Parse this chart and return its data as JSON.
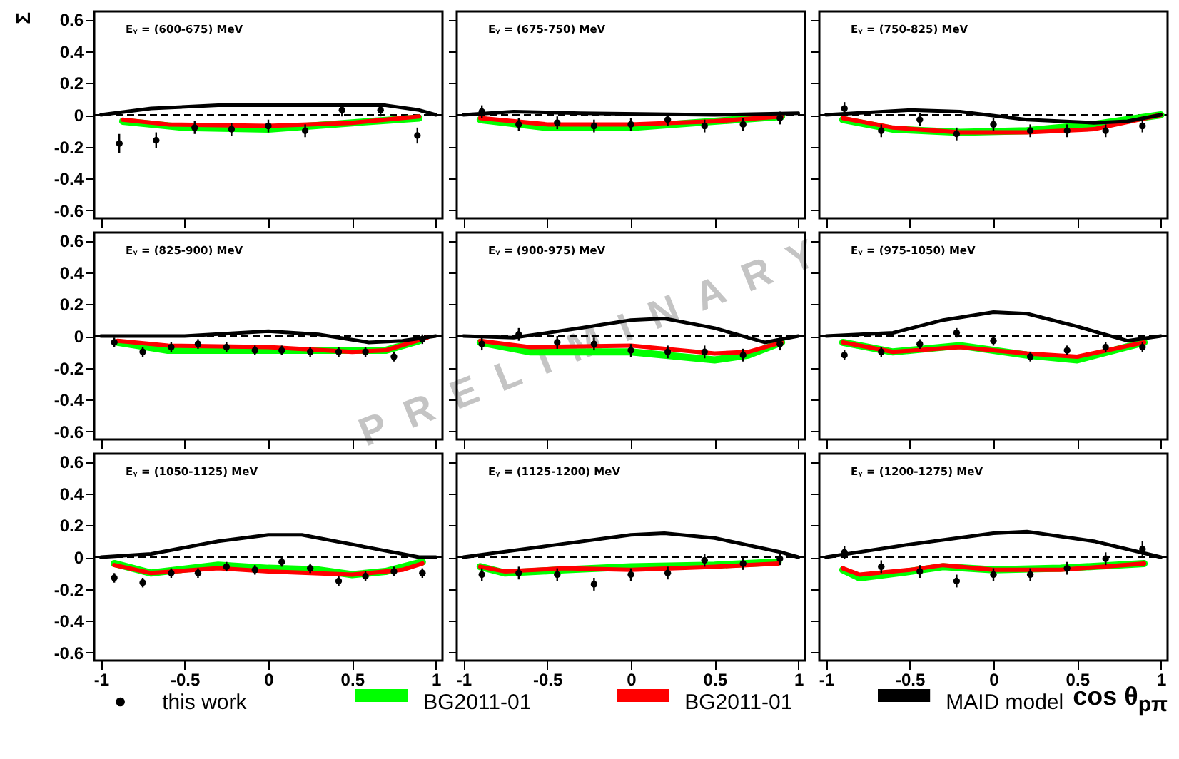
{
  "chart_data": [
    {
      "type": "line",
      "title": "Eᵧ = (600-675) MeV",
      "ylabel": "Σ",
      "xlim": [
        -1.04,
        1.04
      ],
      "ylim": [
        -0.65,
        0.65
      ],
      "yticks": [
        -0.6,
        -0.4,
        -0.2,
        0,
        0.2,
        0.4,
        0.6
      ],
      "xticks": [
        -1,
        -0.5,
        0,
        0.5,
        1
      ],
      "tick_labels": "y",
      "ref_lines": [
        {
          "axis": "y",
          "value": 0,
          "line_style": "dashed",
          "color": "#000000"
        }
      ],
      "series": [
        {
          "type": "scatter",
          "color": "#000000",
          "x": [
            -0.89,
            -0.67,
            -0.44,
            -0.22,
            0,
            0.22,
            0.44,
            0.67,
            0.89
          ],
          "values": [
            -0.18,
            -0.16,
            -0.08,
            -0.09,
            -0.07,
            -0.1,
            0.03,
            0.03,
            -0.13
          ],
          "errors": [
            0.06,
            0.05,
            0.04,
            0.04,
            0.04,
            0.04,
            0.04,
            0.04,
            0.05
          ]
        },
        {
          "type": "line",
          "color": "#00ff00",
          "x": [
            -0.87,
            -0.5,
            0,
            0.5,
            0.9
          ],
          "values": [
            -0.04,
            -0.08,
            -0.09,
            -0.05,
            -0.02
          ]
        },
        {
          "type": "line",
          "color": "#ff0000",
          "x": [
            -0.87,
            -0.6,
            0,
            0.5,
            0.9
          ],
          "values": [
            -0.03,
            -0.06,
            -0.07,
            -0.05,
            -0.01
          ]
        },
        {
          "type": "line",
          "color": "#000000",
          "x": [
            -1,
            -0.7,
            -0.3,
            0.3,
            0.7,
            0.9,
            1
          ],
          "values": [
            0,
            0.04,
            0.06,
            0.06,
            0.06,
            0.03,
            0
          ]
        }
      ]
    },
    {
      "type": "line",
      "title": "Eᵧ = (675-750) MeV",
      "xlim": [
        -1.04,
        1.04
      ],
      "ylim": [
        -0.65,
        0.65
      ],
      "yticks": [
        -0.6,
        -0.4,
        -0.2,
        0,
        0.2,
        0.4,
        0.6
      ],
      "xticks": [
        -1,
        -0.5,
        0,
        0.5,
        1
      ],
      "tick_labels": false,
      "ref_lines": [
        {
          "axis": "y",
          "value": 0,
          "line_style": "dashed",
          "color": "#000000"
        }
      ],
      "series": [
        {
          "type": "scatter",
          "color": "#000000",
          "x": [
            -0.89,
            -0.67,
            -0.44,
            -0.22,
            0,
            0.22,
            0.44,
            0.67,
            0.89
          ],
          "values": [
            0.02,
            -0.06,
            -0.05,
            -0.07,
            -0.06,
            -0.03,
            -0.07,
            -0.06,
            -0.02
          ],
          "errors": [
            0.04,
            0.04,
            0.04,
            0.04,
            0.04,
            0.04,
            0.04,
            0.04,
            0.04
          ]
        },
        {
          "type": "line",
          "color": "#00ff00",
          "x": [
            -0.9,
            -0.5,
            0,
            0.5,
            0.9
          ],
          "values": [
            -0.03,
            -0.08,
            -0.08,
            -0.04,
            -0.01
          ]
        },
        {
          "type": "line",
          "color": "#ff0000",
          "x": [
            -0.9,
            -0.5,
            0,
            0.5,
            0.9
          ],
          "values": [
            -0.02,
            -0.06,
            -0.06,
            -0.04,
            -0.01
          ]
        },
        {
          "type": "line",
          "color": "#000000",
          "x": [
            -1,
            -0.7,
            -0.3,
            0.5,
            1
          ],
          "values": [
            0,
            0.02,
            0.01,
            0,
            0.01
          ]
        }
      ]
    },
    {
      "type": "line",
      "title": "Eᵧ = (750-825) MeV",
      "xlim": [
        -1.04,
        1.04
      ],
      "ylim": [
        -0.65,
        0.65
      ],
      "yticks": [
        -0.6,
        -0.4,
        -0.2,
        0,
        0.2,
        0.4,
        0.6
      ],
      "xticks": [
        -1,
        -0.5,
        0,
        0.5,
        1
      ],
      "tick_labels": false,
      "ref_lines": [
        {
          "axis": "y",
          "value": 0,
          "line_style": "dashed",
          "color": "#000000"
        }
      ],
      "series": [
        {
          "type": "scatter",
          "color": "#000000",
          "x": [
            -0.89,
            -0.67,
            -0.44,
            -0.22,
            0,
            0.22,
            0.44,
            0.67,
            0.89
          ],
          "values": [
            0.04,
            -0.1,
            -0.03,
            -0.12,
            -0.06,
            -0.1,
            -0.1,
            -0.1,
            -0.07
          ],
          "errors": [
            0.04,
            0.04,
            0.04,
            0.04,
            0.04,
            0.04,
            0.04,
            0.04,
            0.04
          ]
        },
        {
          "type": "line",
          "color": "#00ff00",
          "x": [
            -0.9,
            -0.6,
            -0.2,
            0.2,
            0.6,
            1
          ],
          "values": [
            -0.03,
            -0.09,
            -0.11,
            -0.1,
            -0.06,
            0
          ]
        },
        {
          "type": "line",
          "color": "#ff0000",
          "x": [
            -0.9,
            -0.6,
            -0.2,
            0.2,
            0.6,
            1
          ],
          "values": [
            -0.02,
            -0.08,
            -0.11,
            -0.11,
            -0.09,
            0
          ]
        },
        {
          "type": "line",
          "color": "#000000",
          "x": [
            -1,
            -0.5,
            -0.2,
            0.2,
            0.6,
            0.8,
            1
          ],
          "values": [
            0,
            0.03,
            0.02,
            -0.03,
            -0.05,
            -0.04,
            0
          ]
        }
      ]
    },
    {
      "type": "line",
      "title": "Eᵧ = (825-900) MeV",
      "xlim": [
        -1.04,
        1.04
      ],
      "ylim": [
        -0.65,
        0.65
      ],
      "yticks": [
        -0.6,
        -0.4,
        -0.2,
        0,
        0.2,
        0.4,
        0.6
      ],
      "xticks": [
        -1,
        -0.5,
        0,
        0.5,
        1
      ],
      "tick_labels": "y",
      "ref_lines": [
        {
          "axis": "y",
          "value": 0,
          "line_style": "dashed",
          "color": "#000000"
        }
      ],
      "series": [
        {
          "type": "scatter",
          "color": "#000000",
          "x": [
            -0.92,
            -0.75,
            -0.58,
            -0.42,
            -0.25,
            -0.08,
            0.08,
            0.25,
            0.42,
            0.58,
            0.75,
            0.92
          ],
          "values": [
            -0.04,
            -0.1,
            -0.07,
            -0.05,
            -0.07,
            -0.09,
            -0.09,
            -0.1,
            -0.1,
            -0.1,
            -0.13,
            -0.02
          ],
          "errors": [
            0.03,
            0.03,
            0.03,
            0.03,
            0.03,
            0.03,
            0.03,
            0.03,
            0.03,
            0.03,
            0.03,
            0.03
          ]
        },
        {
          "type": "line",
          "color": "#00ff00",
          "x": [
            -0.9,
            -0.6,
            0,
            0.5,
            0.7,
            0.9
          ],
          "values": [
            -0.04,
            -0.09,
            -0.09,
            -0.09,
            -0.09,
            -0.03
          ]
        },
        {
          "type": "line",
          "color": "#ff0000",
          "x": [
            -0.9,
            -0.6,
            0,
            0.5,
            0.7,
            0.95
          ],
          "values": [
            -0.03,
            -0.06,
            -0.07,
            -0.1,
            -0.09,
            -0.01
          ]
        },
        {
          "type": "line",
          "color": "#000000",
          "x": [
            -1,
            -0.5,
            0,
            0.3,
            0.6,
            0.8,
            1
          ],
          "values": [
            0,
            0,
            0.03,
            0.01,
            -0.04,
            -0.03,
            0
          ]
        }
      ]
    },
    {
      "type": "line",
      "title": "Eᵧ = (900-975) MeV",
      "annotations": [
        "PRELIMINARY"
      ],
      "xlim": [
        -1.04,
        1.04
      ],
      "ylim": [
        -0.65,
        0.65
      ],
      "yticks": [
        -0.6,
        -0.4,
        -0.2,
        0,
        0.2,
        0.4,
        0.6
      ],
      "xticks": [
        -1,
        -0.5,
        0,
        0.5,
        1
      ],
      "tick_labels": false,
      "ref_lines": [
        {
          "axis": "y",
          "value": 0,
          "line_style": "dashed",
          "color": "#000000"
        }
      ],
      "series": [
        {
          "type": "scatter",
          "color": "#000000",
          "x": [
            -0.89,
            -0.67,
            -0.44,
            -0.22,
            0,
            0.22,
            0.44,
            0.67,
            0.89
          ],
          "values": [
            -0.05,
            0.01,
            -0.04,
            -0.05,
            -0.09,
            -0.1,
            -0.1,
            -0.12,
            -0.05
          ],
          "errors": [
            0.04,
            0.04,
            0.04,
            0.04,
            0.04,
            0.04,
            0.04,
            0.04,
            0.04
          ]
        },
        {
          "type": "line",
          "color": "#00ff00",
          "x": [
            -0.9,
            -0.6,
            0,
            0.5,
            0.7,
            0.9
          ],
          "values": [
            -0.04,
            -0.1,
            -0.1,
            -0.15,
            -0.12,
            -0.04
          ]
        },
        {
          "type": "line",
          "color": "#ff0000",
          "x": [
            -0.9,
            -0.6,
            0,
            0.5,
            0.7,
            0.9
          ],
          "values": [
            -0.03,
            -0.07,
            -0.06,
            -0.11,
            -0.1,
            -0.04
          ]
        },
        {
          "type": "line",
          "color": "#000000",
          "x": [
            -1,
            -0.7,
            -0.3,
            0,
            0.2,
            0.5,
            0.8,
            1
          ],
          "values": [
            0,
            -0.01,
            0.05,
            0.1,
            0.11,
            0.05,
            -0.04,
            0
          ]
        }
      ]
    },
    {
      "type": "line",
      "title": "Eᵧ = (975-1050) MeV",
      "xlim": [
        -1.04,
        1.04
      ],
      "ylim": [
        -0.65,
        0.65
      ],
      "yticks": [
        -0.6,
        -0.4,
        -0.2,
        0,
        0.2,
        0.4,
        0.6
      ],
      "xticks": [
        -1,
        -0.5,
        0,
        0.5,
        1
      ],
      "tick_labels": false,
      "ref_lines": [
        {
          "axis": "y",
          "value": 0,
          "line_style": "dashed",
          "color": "#000000"
        }
      ],
      "series": [
        {
          "type": "scatter",
          "color": "#000000",
          "x": [
            -0.89,
            -0.67,
            -0.44,
            -0.22,
            0,
            0.22,
            0.44,
            0.67,
            0.89
          ],
          "values": [
            -0.12,
            -0.1,
            -0.05,
            0.02,
            -0.03,
            -0.13,
            -0.09,
            -0.07,
            -0.07
          ],
          "errors": [
            0.03,
            0.03,
            0.03,
            0.03,
            0.03,
            0.03,
            0.03,
            0.03,
            0.03
          ]
        },
        {
          "type": "line",
          "color": "#00ff00",
          "x": [
            -0.9,
            -0.6,
            -0.2,
            0.2,
            0.5,
            0.9
          ],
          "values": [
            -0.04,
            -0.1,
            -0.06,
            -0.12,
            -0.15,
            -0.04
          ]
        },
        {
          "type": "line",
          "color": "#ff0000",
          "x": [
            -0.9,
            -0.6,
            -0.2,
            0.2,
            0.5,
            0.9
          ],
          "values": [
            -0.04,
            -0.1,
            -0.07,
            -0.11,
            -0.13,
            -0.04
          ]
        },
        {
          "type": "line",
          "color": "#000000",
          "x": [
            -1,
            -0.6,
            -0.3,
            0,
            0.2,
            0.5,
            0.8,
            1
          ],
          "values": [
            0,
            0.02,
            0.1,
            0.15,
            0.14,
            0.06,
            -0.03,
            0
          ]
        }
      ]
    },
    {
      "type": "line",
      "title": "Eᵧ = (1050-1125) MeV",
      "xlim": [
        -1.04,
        1.04
      ],
      "ylim": [
        -0.65,
        0.65
      ],
      "yticks": [
        -0.6,
        -0.4,
        -0.2,
        0,
        0.2,
        0.4,
        0.6
      ],
      "xticks": [
        -1,
        -0.5,
        0,
        0.5,
        1
      ],
      "legend": "bottom",
      "ref_lines": [
        {
          "axis": "y",
          "value": 0,
          "line_style": "dashed",
          "color": "#000000"
        }
      ],
      "series": [
        {
          "name": "this work",
          "type": "scatter",
          "color": "#000000",
          "x": [
            -0.92,
            -0.75,
            -0.58,
            -0.42,
            -0.25,
            -0.08,
            0.08,
            0.25,
            0.42,
            0.58,
            0.75,
            0.92
          ],
          "values": [
            -0.13,
            -0.16,
            -0.1,
            -0.1,
            -0.06,
            -0.08,
            -0.03,
            -0.07,
            -0.15,
            -0.12,
            -0.09,
            -0.1
          ],
          "errors": [
            0.03,
            0.03,
            0.03,
            0.03,
            0.03,
            0.03,
            0.03,
            0.03,
            0.03,
            0.03,
            0.03,
            0.03
          ]
        },
        {
          "name": "BG2011-01",
          "type": "line",
          "color": "#00ff00",
          "x": [
            -0.92,
            -0.7,
            -0.3,
            0,
            0.3,
            0.5,
            0.7,
            0.92
          ],
          "values": [
            -0.04,
            -0.1,
            -0.05,
            -0.07,
            -0.08,
            -0.11,
            -0.09,
            -0.03
          ]
        },
        {
          "name": "BG2011-01",
          "type": "line",
          "color": "#ff0000",
          "x": [
            -0.92,
            -0.7,
            -0.3,
            0,
            0.5,
            0.8,
            0.92
          ],
          "values": [
            -0.05,
            -0.1,
            -0.07,
            -0.09,
            -0.11,
            -0.08,
            -0.04
          ]
        },
        {
          "name": "MAID model",
          "type": "line",
          "color": "#000000",
          "x": [
            -1,
            -0.7,
            -0.3,
            0,
            0.2,
            0.6,
            0.9,
            1
          ],
          "values": [
            0,
            0.02,
            0.1,
            0.14,
            0.14,
            0.06,
            0,
            0
          ]
        }
      ]
    },
    {
      "type": "line",
      "title": "Eᵧ = (1125-1200) MeV",
      "xlim": [
        -1.04,
        1.04
      ],
      "ylim": [
        -0.65,
        0.65
      ],
      "yticks": [
        -0.6,
        -0.4,
        -0.2,
        0,
        0.2,
        0.4,
        0.6
      ],
      "xticks": [
        -1,
        -0.5,
        0,
        0.5,
        1
      ],
      "tick_labels": "x",
      "ref_lines": [
        {
          "axis": "y",
          "value": 0,
          "line_style": "dashed",
          "color": "#000000"
        }
      ],
      "series": [
        {
          "type": "scatter",
          "color": "#000000",
          "x": [
            -0.89,
            -0.67,
            -0.44,
            -0.22,
            0,
            0.22,
            0.44,
            0.67,
            0.89
          ],
          "values": [
            -0.11,
            -0.1,
            -0.11,
            -0.17,
            -0.11,
            -0.1,
            -0.02,
            -0.04,
            -0.01
          ],
          "errors": [
            0.04,
            0.04,
            0.04,
            0.04,
            0.04,
            0.04,
            0.04,
            0.04,
            0.04
          ]
        },
        {
          "type": "line",
          "color": "#00ff00",
          "x": [
            -0.9,
            -0.75,
            -0.4,
            0,
            0.5,
            0.88
          ],
          "values": [
            -0.06,
            -0.1,
            -0.08,
            -0.06,
            -0.05,
            -0.03
          ]
        },
        {
          "type": "line",
          "color": "#ff0000",
          "x": [
            -0.9,
            -0.75,
            -0.4,
            0,
            0.5,
            0.88
          ],
          "values": [
            -0.06,
            -0.09,
            -0.07,
            -0.08,
            -0.06,
            -0.04
          ]
        },
        {
          "type": "line",
          "color": "#000000",
          "x": [
            -1,
            -0.5,
            0,
            0.2,
            0.5,
            0.9,
            1
          ],
          "values": [
            0,
            0.07,
            0.14,
            0.15,
            0.12,
            0.03,
            0
          ]
        }
      ]
    },
    {
      "type": "line",
      "title": "Eᵧ = (1200-1275) MeV",
      "xlabel": "cos θ$_{pπ}$",
      "xlim": [
        -1.04,
        1.04
      ],
      "ylim": [
        -0.65,
        0.65
      ],
      "yticks": [
        -0.6,
        -0.4,
        -0.2,
        0,
        0.2,
        0.4,
        0.6
      ],
      "xticks": [
        -1,
        -0.5,
        0,
        0.5,
        1
      ],
      "tick_labels": "x",
      "ref_lines": [
        {
          "axis": "y",
          "value": 0,
          "line_style": "dashed",
          "color": "#000000"
        }
      ],
      "series": [
        {
          "type": "scatter",
          "color": "#000000",
          "x": [
            -0.89,
            -0.67,
            -0.44,
            -0.22,
            0,
            0.22,
            0.44,
            0.67,
            0.89
          ],
          "values": [
            0.03,
            -0.06,
            -0.09,
            -0.15,
            -0.11,
            -0.11,
            -0.07,
            -0.01,
            0.05
          ],
          "errors": [
            0.04,
            0.04,
            0.04,
            0.04,
            0.04,
            0.04,
            0.04,
            0.04,
            0.05
          ]
        },
        {
          "type": "line",
          "color": "#00ff00",
          "x": [
            -0.9,
            -0.8,
            -0.5,
            -0.3,
            0,
            0.4,
            0.9
          ],
          "values": [
            -0.08,
            -0.13,
            -0.09,
            -0.06,
            -0.08,
            -0.07,
            -0.04
          ]
        },
        {
          "type": "line",
          "color": "#ff0000",
          "x": [
            -0.9,
            -0.8,
            -0.5,
            -0.3,
            0,
            0.4,
            0.9
          ],
          "values": [
            -0.07,
            -0.11,
            -0.08,
            -0.05,
            -0.08,
            -0.08,
            -0.04
          ]
        },
        {
          "type": "line",
          "color": "#000000",
          "x": [
            -1,
            -0.5,
            0,
            0.2,
            0.6,
            1
          ],
          "values": [
            0,
            0.08,
            0.15,
            0.16,
            0.1,
            0
          ]
        }
      ]
    }
  ]
}
